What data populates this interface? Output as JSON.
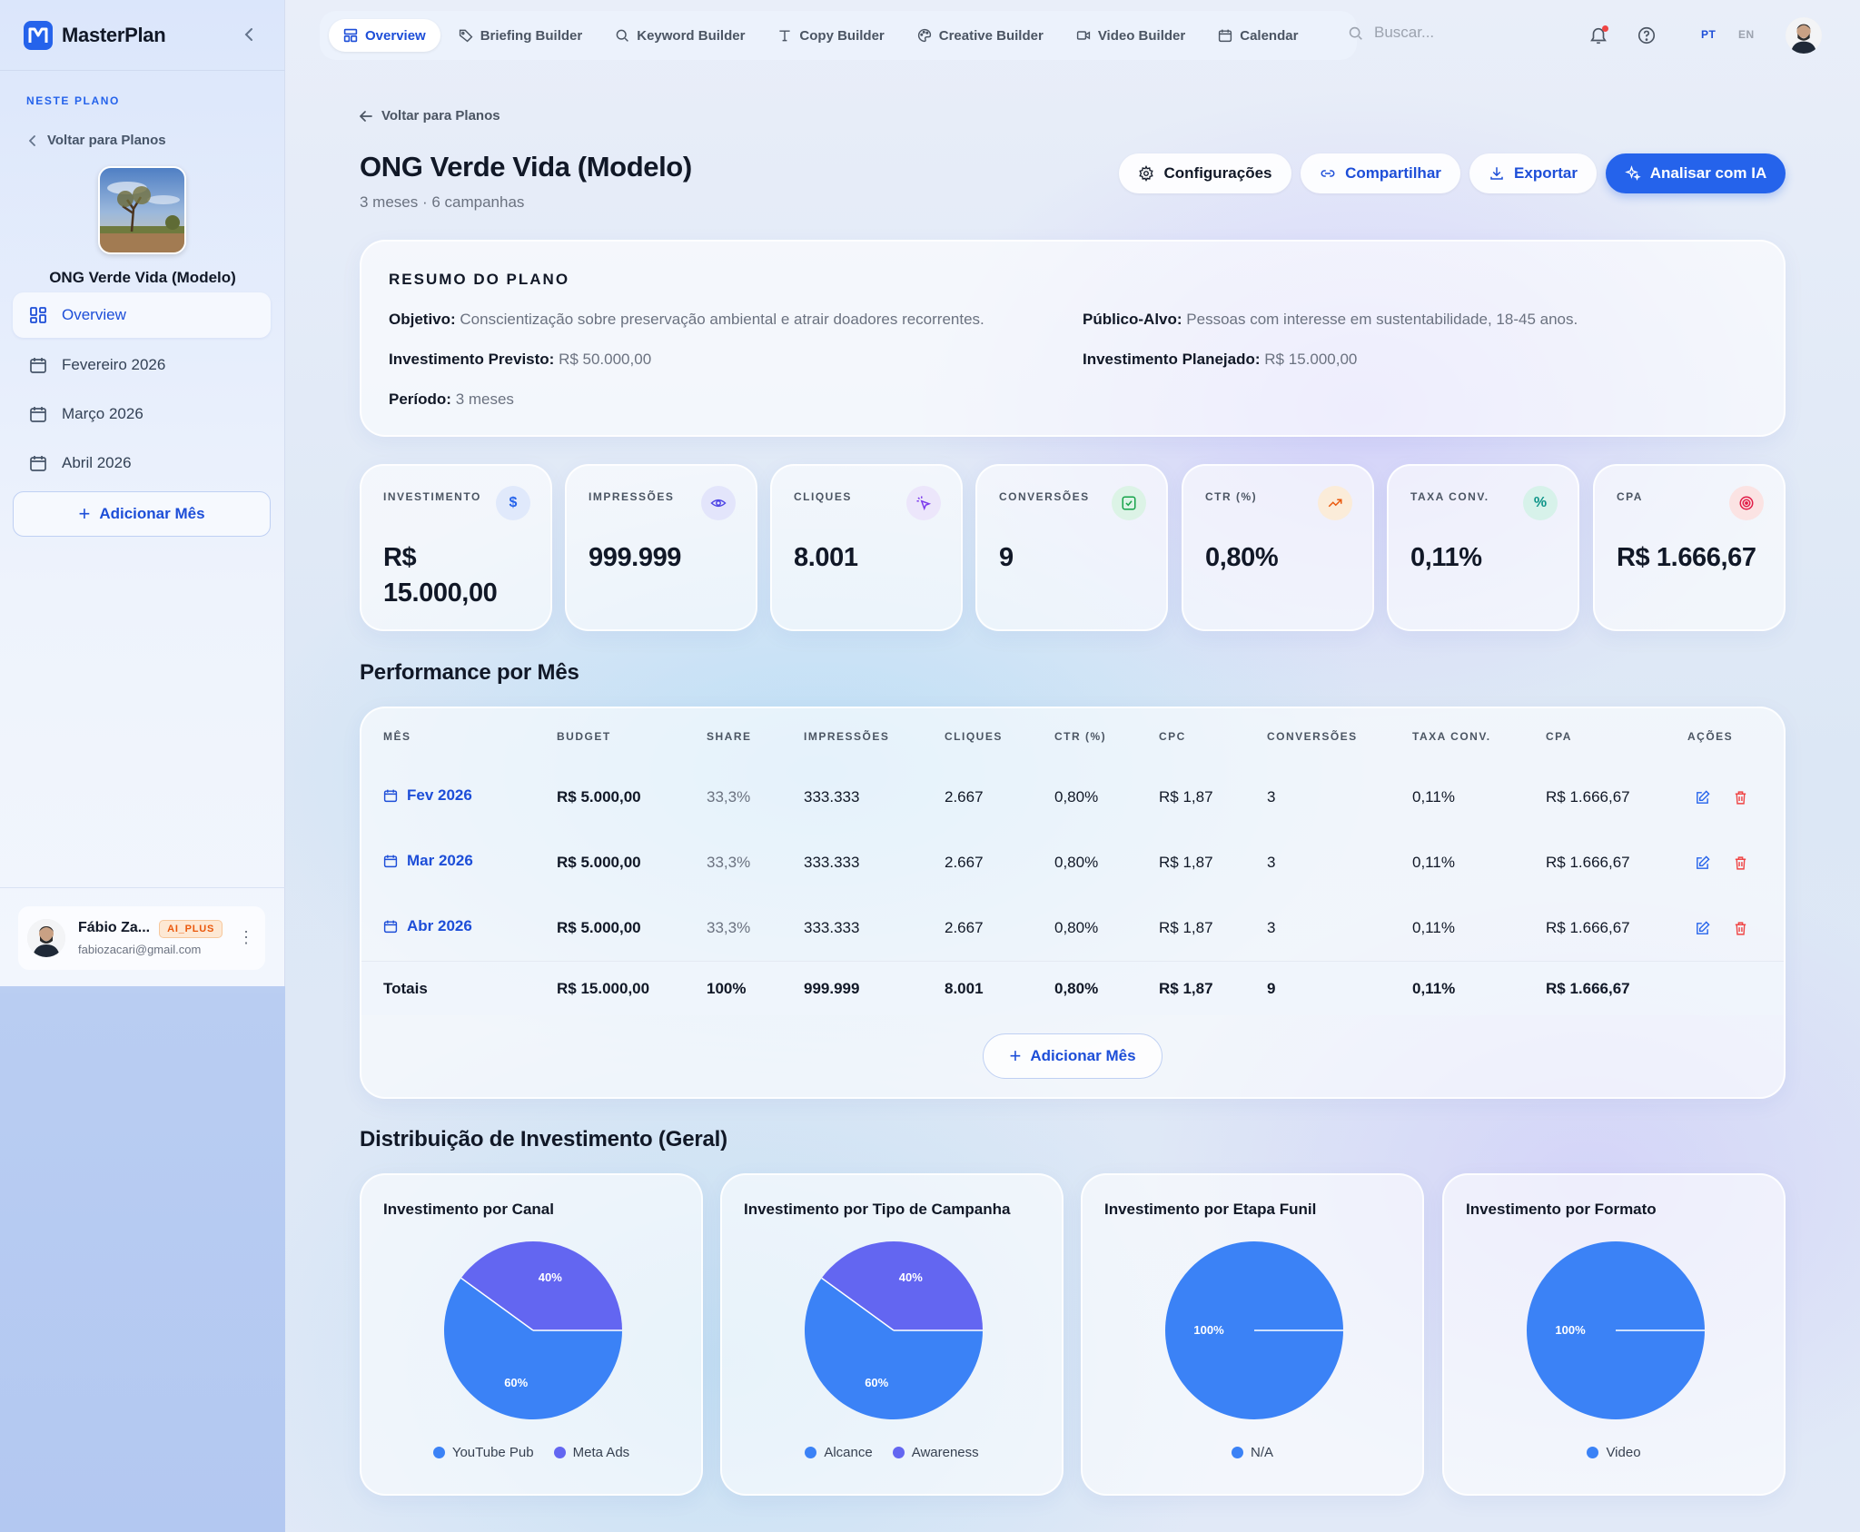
{
  "brand": {
    "name": "MasterPlan"
  },
  "sidebar": {
    "section_label": "NESTE PLANO",
    "back_label": "Voltar para Planos",
    "plan_name": "ONG Verde Vida (Modelo)",
    "items": [
      {
        "label": "Overview",
        "icon": "dashboard-icon"
      },
      {
        "label": "Fevereiro 2026",
        "icon": "calendar-icon"
      },
      {
        "label": "Março 2026",
        "icon": "calendar-icon"
      },
      {
        "label": "Abril 2026",
        "icon": "calendar-icon"
      }
    ],
    "add_month": "Adicionar Mês",
    "user": {
      "name": "Fábio Za...",
      "badge": "AI_PLUS",
      "email": "fabiozacari@gmail.com"
    }
  },
  "topnav": {
    "tabs": [
      {
        "label": "Overview",
        "icon": "dashboard-icon"
      },
      {
        "label": "Briefing Builder",
        "icon": "tag-icon"
      },
      {
        "label": "Keyword Builder",
        "icon": "search-icon"
      },
      {
        "label": "Copy Builder",
        "icon": "type-icon"
      },
      {
        "label": "Creative Builder",
        "icon": "palette-icon"
      },
      {
        "label": "Video Builder",
        "icon": "video-icon"
      },
      {
        "label": "Calendar",
        "icon": "calendar-icon"
      }
    ],
    "search_placeholder": "Buscar...",
    "lang_pt": "PT",
    "lang_en": "EN"
  },
  "page": {
    "breadcrumb": "Voltar para Planos",
    "title": "ONG Verde Vida (Modelo)",
    "subtitle": "3 meses · 6 campanhas",
    "actions": {
      "settings": "Configurações",
      "share": "Compartilhar",
      "export": "Exportar",
      "analyze": "Analisar com IA"
    }
  },
  "summary": {
    "title": "RESUMO DO PLANO",
    "objective_label": "Objetivo:",
    "objective": "Conscientização sobre preservação ambiental e atrair doadores recorrentes.",
    "audience_label": "Público-Alvo:",
    "audience": "Pessoas com interesse em sustentabilidade, 18-45 anos.",
    "expected_label": "Investimento Previsto:",
    "expected": "R$ 50.000,00",
    "planned_label": "Investimento Planejado:",
    "planned": "R$ 15.000,00",
    "period_label": "Período:",
    "period": "3 meses"
  },
  "kpis": [
    {
      "label": "INVESTIMENTO",
      "value_line1": "R$",
      "value_line2": "15.000,00",
      "icon": "dollar-icon",
      "icon_color": "#2563eb",
      "icon_bg": "#e0e9fb"
    },
    {
      "label": "IMPRESSÕES",
      "value_line1": "999.999",
      "value_line2": "",
      "icon": "eye-icon",
      "icon_color": "#4f46e5",
      "icon_bg": "#e3e5fb"
    },
    {
      "label": "CLIQUES",
      "value_line1": "8.001",
      "value_line2": "",
      "icon": "pointer-icon",
      "icon_color": "#7c3aed",
      "icon_bg": "#ece6fb"
    },
    {
      "label": "CONVERSÕES",
      "value_line1": "9",
      "value_line2": "",
      "icon": "check-square-icon",
      "icon_color": "#16a34a",
      "icon_bg": "#dcf3e6"
    },
    {
      "label": "CTR (%)",
      "value_line1": "0,80%",
      "value_line2": "",
      "icon": "trending-up-icon",
      "icon_color": "#ea580c",
      "icon_bg": "#fbecd9"
    },
    {
      "label": "TAXA CONV.",
      "value_line1": "0,11%",
      "value_line2": "",
      "icon": "percent-icon",
      "icon_color": "#0d9488",
      "icon_bg": "#d7f2ea"
    },
    {
      "label": "CPA",
      "value_line1": "R$ 1.666,67",
      "value_line2": "",
      "icon": "target-icon",
      "icon_color": "#e11d48",
      "icon_bg": "#fbe3e3"
    }
  ],
  "performance": {
    "title": "Performance por Mês",
    "columns": [
      "MÊS",
      "BUDGET",
      "SHARE",
      "IMPRESSÕES",
      "CLIQUES",
      "CTR (%)",
      "CPC",
      "CONVERSÕES",
      "TAXA CONV.",
      "CPA",
      "AÇÕES"
    ],
    "rows": [
      {
        "month": "Fev 2026",
        "budget": "R$ 5.000,00",
        "share": "33,3%",
        "impressions": "333.333",
        "clicks": "2.667",
        "ctr": "0,80%",
        "cpc": "R$ 1,87",
        "conversions": "3",
        "conv_rate": "0,11%",
        "cpa": "R$ 1.666,67"
      },
      {
        "month": "Mar 2026",
        "budget": "R$ 5.000,00",
        "share": "33,3%",
        "impressions": "333.333",
        "clicks": "2.667",
        "ctr": "0,80%",
        "cpc": "R$ 1,87",
        "conversions": "3",
        "conv_rate": "0,11%",
        "cpa": "R$ 1.666,67"
      },
      {
        "month": "Abr 2026",
        "budget": "R$ 5.000,00",
        "share": "33,3%",
        "impressions": "333.333",
        "clicks": "2.667",
        "ctr": "0,80%",
        "cpc": "R$ 1,87",
        "conversions": "3",
        "conv_rate": "0,11%",
        "cpa": "R$ 1.666,67"
      }
    ],
    "totals": {
      "label": "Totais",
      "budget": "R$ 15.000,00",
      "share": "100%",
      "impressions": "999.999",
      "clicks": "8.001",
      "ctr": "0,80%",
      "cpc": "R$ 1,87",
      "conversions": "9",
      "conv_rate": "0,11%",
      "cpa": "R$ 1.666,67"
    },
    "add_month": "Adicionar Mês"
  },
  "distribution": {
    "title": "Distribuição de Investimento (Geral)"
  },
  "chart_data": [
    {
      "type": "pie",
      "title": "Investimento por Canal",
      "categories": [
        "YouTube Pub",
        "Meta Ads"
      ],
      "values": [
        60,
        40
      ],
      "colors": [
        "#3b82f6",
        "#6366f1"
      ]
    },
    {
      "type": "pie",
      "title": "Investimento por Tipo de Campanha",
      "categories": [
        "Alcance",
        "Awareness"
      ],
      "values": [
        60,
        40
      ],
      "colors": [
        "#3b82f6",
        "#6366f1"
      ]
    },
    {
      "type": "pie",
      "title": "Investimento por Etapa Funil",
      "categories": [
        "N/A"
      ],
      "values": [
        100
      ],
      "colors": [
        "#3b82f6"
      ]
    },
    {
      "type": "pie",
      "title": "Investimento por Formato",
      "categories": [
        "Video"
      ],
      "values": [
        100
      ],
      "colors": [
        "#3b82f6"
      ]
    }
  ]
}
